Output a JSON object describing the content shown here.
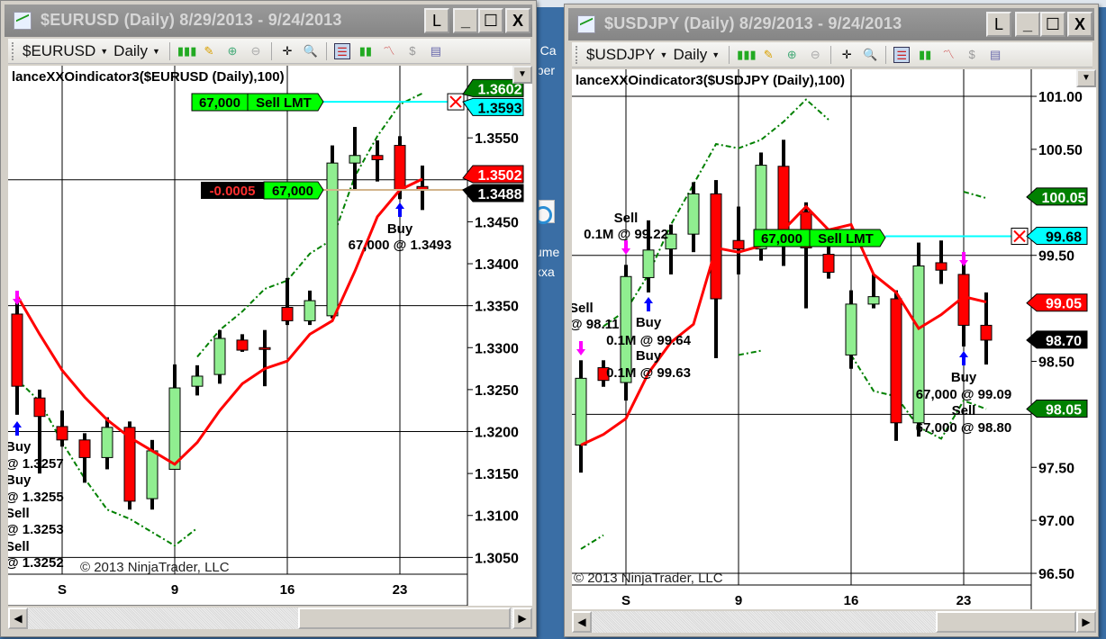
{
  "desktop": {
    "fragments": [
      "p Ca",
      "aper",
      "ume",
      "xxa"
    ],
    "bg_color": "#3a6ea5"
  },
  "windows": [
    {
      "title": "$EURUSD (Daily)  8/29/2013 - 9/24/2013",
      "controls": {
        "link": "L",
        "minimize": "_",
        "maximize": "☐",
        "close": "X"
      },
      "toolbar": {
        "instrument": "$EURUSD",
        "interval": "Daily",
        "icons": [
          "chart-style-icon",
          "pencil-draw-icon",
          "zoom-in-icon",
          "zoom-out-icon",
          "crosshair-icon",
          "data-box-icon",
          "orders-panel-icon",
          "bars-icon",
          "indicators-icon",
          "strategies-icon",
          "properties-icon"
        ]
      },
      "indicator_label": "lanceXXOindicator3($EURUSD (Daily),100)",
      "copyright": "© 2013 NinjaTrader, LLC",
      "order": {
        "qty": "67,000",
        "type": "Sell LMT",
        "pnl": "-0.0005",
        "position_qty": "67,000",
        "limit_price": 1.3593,
        "avg_price": 1.3488
      },
      "chart_data": {
        "type": "candlestick",
        "ylim": [
          1.303,
          1.3636
        ],
        "grid_y": [
          1.35,
          1.335,
          1.32,
          1.305
        ],
        "x_ticks": [
          {
            "bar": 2,
            "label": "S"
          },
          {
            "bar": 7,
            "label": "9"
          },
          {
            "bar": 12,
            "label": "16"
          },
          {
            "bar": 17,
            "label": "23"
          }
        ],
        "y_ticks": [
          "1.3550",
          "1.3450",
          "1.3400",
          "1.3350",
          "1.3300",
          "1.3250",
          "1.3200",
          "1.3150",
          "1.3100",
          "1.3050"
        ],
        "dates": [
          "8/29",
          "8/30",
          "9/2",
          "9/3",
          "9/4",
          "9/5",
          "9/6",
          "9/9",
          "9/10",
          "9/11",
          "9/12",
          "9/13",
          "9/16",
          "9/17",
          "9/18",
          "9/19",
          "9/20",
          "9/23",
          "9/24"
        ],
        "ohlc": [
          [
            1.334,
            1.3364,
            1.322,
            1.3254
          ],
          [
            1.324,
            1.325,
            1.315,
            1.3218
          ],
          [
            1.3206,
            1.3225,
            1.3182,
            1.319
          ],
          [
            1.319,
            1.3198,
            1.3139,
            1.3169
          ],
          [
            1.3169,
            1.3217,
            1.3155,
            1.3205
          ],
          [
            1.3205,
            1.3212,
            1.3107,
            1.3117
          ],
          [
            1.312,
            1.319,
            1.3107,
            1.3177
          ],
          [
            1.3155,
            1.328,
            1.3155,
            1.3252
          ],
          [
            1.3254,
            1.3279,
            1.3243,
            1.3266
          ],
          [
            1.3268,
            1.3321,
            1.3257,
            1.3311
          ],
          [
            1.3309,
            1.3316,
            1.3295,
            1.3297
          ],
          [
            1.33,
            1.3321,
            1.3254,
            1.3299
          ],
          [
            1.3348,
            1.3383,
            1.3327,
            1.3332
          ],
          [
            1.3332,
            1.3368,
            1.3327,
            1.3356
          ],
          [
            1.3338,
            1.3541,
            1.3335,
            1.352
          ],
          [
            1.352,
            1.3563,
            1.3488,
            1.3529
          ],
          [
            1.3529,
            1.3547,
            1.3498,
            1.3524
          ],
          [
            1.3541,
            1.3552,
            1.3477,
            1.3488
          ],
          [
            1.3492,
            1.3517,
            1.3464,
            1.3488
          ]
        ],
        "ma_line": [
          1.3362,
          1.3316,
          1.3273,
          1.3241,
          1.3214,
          1.3193,
          1.3177,
          1.3161,
          1.3187,
          1.3225,
          1.3257,
          1.3275,
          1.3284,
          1.3316,
          1.3332,
          1.3391,
          1.3456,
          1.3488,
          1.3501
        ],
        "upper_band": [
          null,
          null,
          null,
          null,
          null,
          null,
          null,
          null,
          1.3289,
          1.3321,
          1.3343,
          1.337,
          1.338,
          1.3412,
          1.3429,
          1.3504,
          1.3552,
          1.359,
          1.3603
        ],
        "lower_band": [
          1.3262,
          1.3236,
          1.3187,
          1.3144,
          1.3107,
          1.3096,
          1.308,
          1.3064,
          1.3085,
          null,
          null,
          null,
          null,
          null,
          null,
          null,
          null,
          null,
          null
        ],
        "price_tags": [
          {
            "label": "1.3602",
            "price": 1.3602,
            "color": "#008000",
            "text": "#ffffff"
          },
          {
            "label": "1.3593",
            "price": 1.3593,
            "color": "#00ffff",
            "text": "#000000"
          },
          {
            "label": "1.3502",
            "price": 1.3502,
            "color": "#ff0000",
            "text": "#ffffff"
          },
          {
            "label": "1.3488",
            "price": 1.3488,
            "color": "#000000",
            "text": "#ffffff"
          }
        ],
        "annotations": [
          "Buy",
          "@ 1.3257",
          "Buy",
          "@ 1.3255",
          "Sell",
          "@ 1.3253",
          "Sell",
          "@ 1.3252",
          "Buy",
          "67,000 @ 1.3493"
        ]
      }
    },
    {
      "title": "$USDJPY (Daily)  8/29/2013 - 9/24/2013",
      "controls": {
        "link": "L",
        "minimize": "_",
        "maximize": "☐",
        "close": "X"
      },
      "toolbar": {
        "instrument": "$USDJPY",
        "interval": "Daily",
        "icons": [
          "chart-style-icon",
          "pencil-draw-icon",
          "zoom-in-icon",
          "zoom-out-icon",
          "crosshair-icon",
          "data-box-icon",
          "orders-panel-icon",
          "bars-icon",
          "indicators-icon",
          "strategies-icon",
          "properties-icon"
        ]
      },
      "indicator_label": "lanceXXOindicator3($USDJPY (Daily),100)",
      "copyright": "© 2013 NinjaTrader, LLC",
      "order": {
        "qty": "67,000",
        "type": "Sell LMT",
        "limit_price": 99.68
      },
      "chart_data": {
        "type": "candlestick",
        "ylim": [
          96.39,
          101.255
        ],
        "grid_y": [
          101.0,
          99.5,
          98.0,
          96.5
        ],
        "x_ticks": [
          {
            "bar": 2,
            "label": "S"
          },
          {
            "bar": 7,
            "label": "9"
          },
          {
            "bar": 12,
            "label": "16"
          },
          {
            "bar": 17,
            "label": "23"
          }
        ],
        "y_ticks": [
          "101.00",
          "100.50",
          "99.50",
          "98.50",
          "97.50",
          "97.00",
          "96.50"
        ],
        "dates": [
          "8/29",
          "8/30",
          "9/2",
          "9/3",
          "9/4",
          "9/5",
          "9/6",
          "9/9",
          "9/10",
          "9/11",
          "9/12",
          "9/13",
          "9/16",
          "9/17",
          "9/18",
          "9/19",
          "9/20",
          "9/23",
          "9/24"
        ],
        "ohlc": [
          [
            97.71,
            98.51,
            97.45,
            98.34
          ],
          [
            98.44,
            98.51,
            98.26,
            98.32
          ],
          [
            98.3,
            99.41,
            98.13,
            99.3
          ],
          [
            99.29,
            99.83,
            99.15,
            99.55
          ],
          [
            99.56,
            99.79,
            99.32,
            99.7
          ],
          [
            99.7,
            100.19,
            99.53,
            100.08
          ],
          [
            100.08,
            100.21,
            98.53,
            99.09
          ],
          [
            99.64,
            99.96,
            99.32,
            99.56
          ],
          [
            99.56,
            100.47,
            99.45,
            100.35
          ],
          [
            100.34,
            100.59,
            99.4,
            99.62
          ],
          [
            99.91,
            100.0,
            99.0,
            99.57
          ],
          [
            99.51,
            99.59,
            99.28,
            99.34
          ],
          [
            98.56,
            99.17,
            98.43,
            99.04
          ],
          [
            99.04,
            99.32,
            99.0,
            99.11
          ],
          [
            99.09,
            99.17,
            97.75,
            97.92
          ],
          [
            97.92,
            99.62,
            97.79,
            99.4
          ],
          [
            99.43,
            99.64,
            99.23,
            99.36
          ],
          [
            99.32,
            99.47,
            98.64,
            98.84
          ],
          [
            98.84,
            99.15,
            98.47,
            98.7
          ]
        ],
        "ma_line": [
          97.71,
          97.81,
          97.96,
          98.39,
          98.68,
          98.85,
          99.57,
          99.53,
          99.59,
          99.74,
          99.96,
          99.74,
          99.79,
          99.32,
          99.15,
          98.81,
          98.94,
          99.11,
          99.06
        ],
        "upper_band": [
          null,
          98.83,
          98.98,
          99.32,
          99.79,
          100.17,
          100.55,
          100.51,
          100.59,
          100.76,
          100.97,
          100.78,
          null,
          null,
          null,
          null,
          null,
          100.1,
          100.04
        ],
        "lower_band": [
          96.73,
          96.86,
          null,
          null,
          null,
          null,
          null,
          98.56,
          98.6,
          null,
          null,
          null,
          98.56,
          98.22,
          98.17,
          97.88,
          97.77,
          98.13,
          98.05
        ],
        "price_tags": [
          {
            "label": "100.05",
            "price": 100.05,
            "color": "#008000",
            "text": "#ffffff"
          },
          {
            "label": "99.68",
            "price": 99.68,
            "color": "#00ffff",
            "text": "#000000"
          },
          {
            "label": "99.05",
            "price": 99.05,
            "color": "#ff0000",
            "text": "#ffffff"
          },
          {
            "label": "98.70",
            "price": 98.7,
            "color": "#000000",
            "text": "#ffffff"
          },
          {
            "label": "98.05",
            "price": 98.05,
            "color": "#008000",
            "text": "#ffffff"
          }
        ],
        "annotations": [
          "Sell",
          "0.1M @ 99.22",
          "Sell",
          "@ 98.11",
          "Buy",
          "0.1M @ 99.64",
          "Buy",
          "0.1M @ 99.63",
          "Buy",
          "67,000 @ 99.09",
          "Sell",
          "67,000 @ 98.80"
        ]
      }
    }
  ]
}
